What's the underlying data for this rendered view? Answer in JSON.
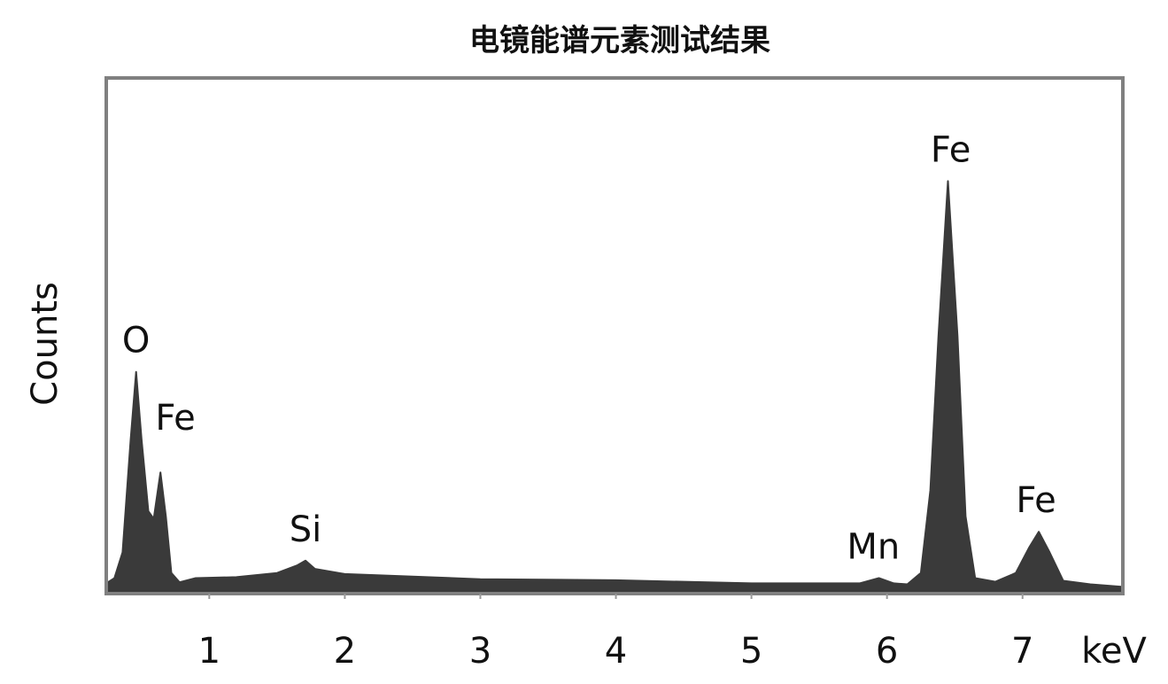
{
  "chart_data": {
    "type": "area",
    "title": "电镜能谱元素测试结果",
    "xlabel": "keV",
    "ylabel": "Counts",
    "xlim": [
      0.24,
      7.74
    ],
    "ylim": [
      0,
      100
    ],
    "xticks": [
      1,
      2,
      3,
      4,
      5,
      6,
      7
    ],
    "yticks": [],
    "grid": false,
    "fill_color": "#3a3a3a",
    "frame_color": "#808080",
    "series": [
      {
        "x": [
          0.24,
          0.3,
          0.36,
          0.42,
          0.46,
          0.5,
          0.55,
          0.59,
          0.64,
          0.68,
          0.72,
          0.78,
          0.9,
          1.2,
          1.5,
          1.65,
          1.71,
          1.78,
          2.0,
          3.0,
          4.0,
          5.0,
          5.8,
          5.94,
          6.05,
          6.15,
          6.25,
          6.32,
          6.38,
          6.45,
          6.52,
          6.58,
          6.65,
          6.8,
          6.95,
          7.05,
          7.12,
          7.2,
          7.3,
          7.5,
          7.74
        ],
        "y": [
          2,
          3,
          8,
          30,
          43,
          30,
          16,
          14.5,
          23.5,
          15,
          4,
          2.2,
          3,
          3.2,
          4,
          5.5,
          6.4,
          4.8,
          3.8,
          2.8,
          2.6,
          2,
          2,
          3,
          2,
          1.8,
          4,
          20,
          50,
          80,
          50,
          15,
          3,
          2.3,
          4,
          9,
          12,
          8,
          2.5,
          1.8,
          1.3
        ]
      }
    ],
    "annotations": [
      {
        "text": "O",
        "x": 0.46,
        "y": 43
      },
      {
        "text": "Fe",
        "x": 0.75,
        "y": 28
      },
      {
        "text": "Si",
        "x": 1.71,
        "y": 6.4
      },
      {
        "text": "Mn",
        "x": 5.9,
        "y": 3
      },
      {
        "text": "Fe",
        "x": 6.47,
        "y": 80
      },
      {
        "text": "Fe",
        "x": 7.1,
        "y": 12
      }
    ]
  }
}
